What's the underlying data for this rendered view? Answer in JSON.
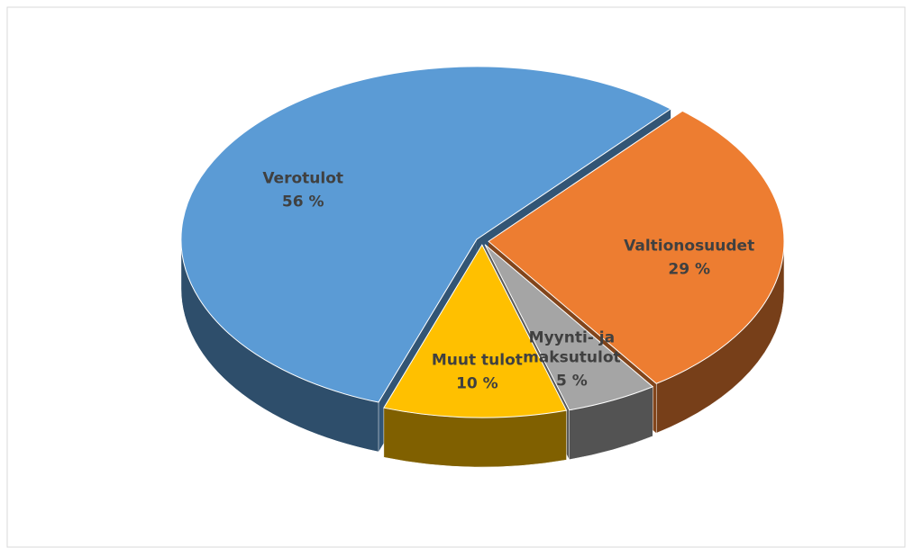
{
  "chart_data": {
    "type": "pie3d",
    "categories": [
      "Verotulot",
      "Valtionosuudet",
      "Myynti- ja maksutulot",
      "Muut tulot"
    ],
    "values": [
      56,
      29,
      5,
      10
    ],
    "value_labels": [
      "56 %",
      "29 %",
      "5 %",
      "10 %"
    ],
    "colors": [
      "#5b9bd5",
      "#ed7d31",
      "#a5a5a5",
      "#ffc000"
    ]
  }
}
